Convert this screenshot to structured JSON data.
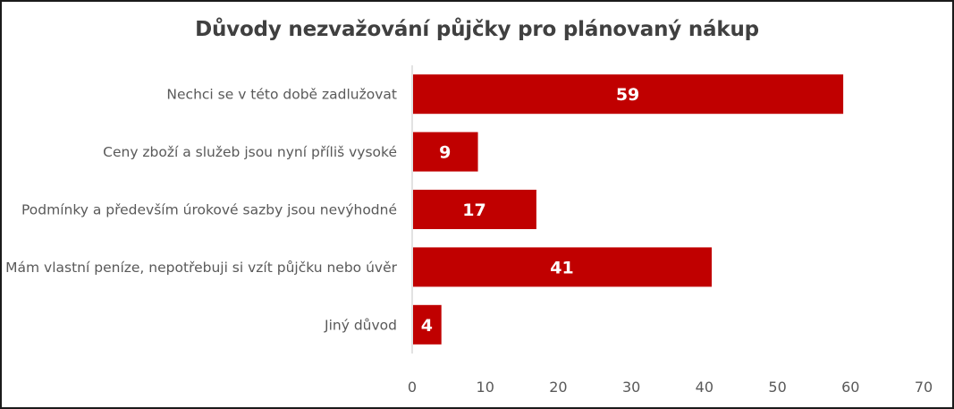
{
  "chart_data": {
    "type": "bar",
    "orientation": "horizontal",
    "title": "Důvody nezvažování půjčky pro plánovaný nákup",
    "categories": [
      "Nechci se v této době zadlužovat",
      "Ceny zboží a služeb jsou nyní příliš vysoké",
      "Podmínky a především úrokové sazby jsou nevýhodné",
      "Mám vlastní peníze, nepotřebuji si vzít půjčku nebo úvěr",
      "Jiný důvod"
    ],
    "values": [
      59,
      9,
      17,
      41,
      4
    ],
    "data_labels": [
      "59",
      "9",
      "17",
      "41",
      "4"
    ],
    "xlim": [
      0,
      70
    ],
    "xticks": [
      "0",
      "10",
      "20",
      "30",
      "40",
      "50",
      "60",
      "70"
    ],
    "xlabel": "",
    "ylabel": "",
    "grid": false,
    "legend": "none",
    "bar_color": "#C00000",
    "axis_color": "#D9D9D9",
    "text_color": "#595959"
  }
}
